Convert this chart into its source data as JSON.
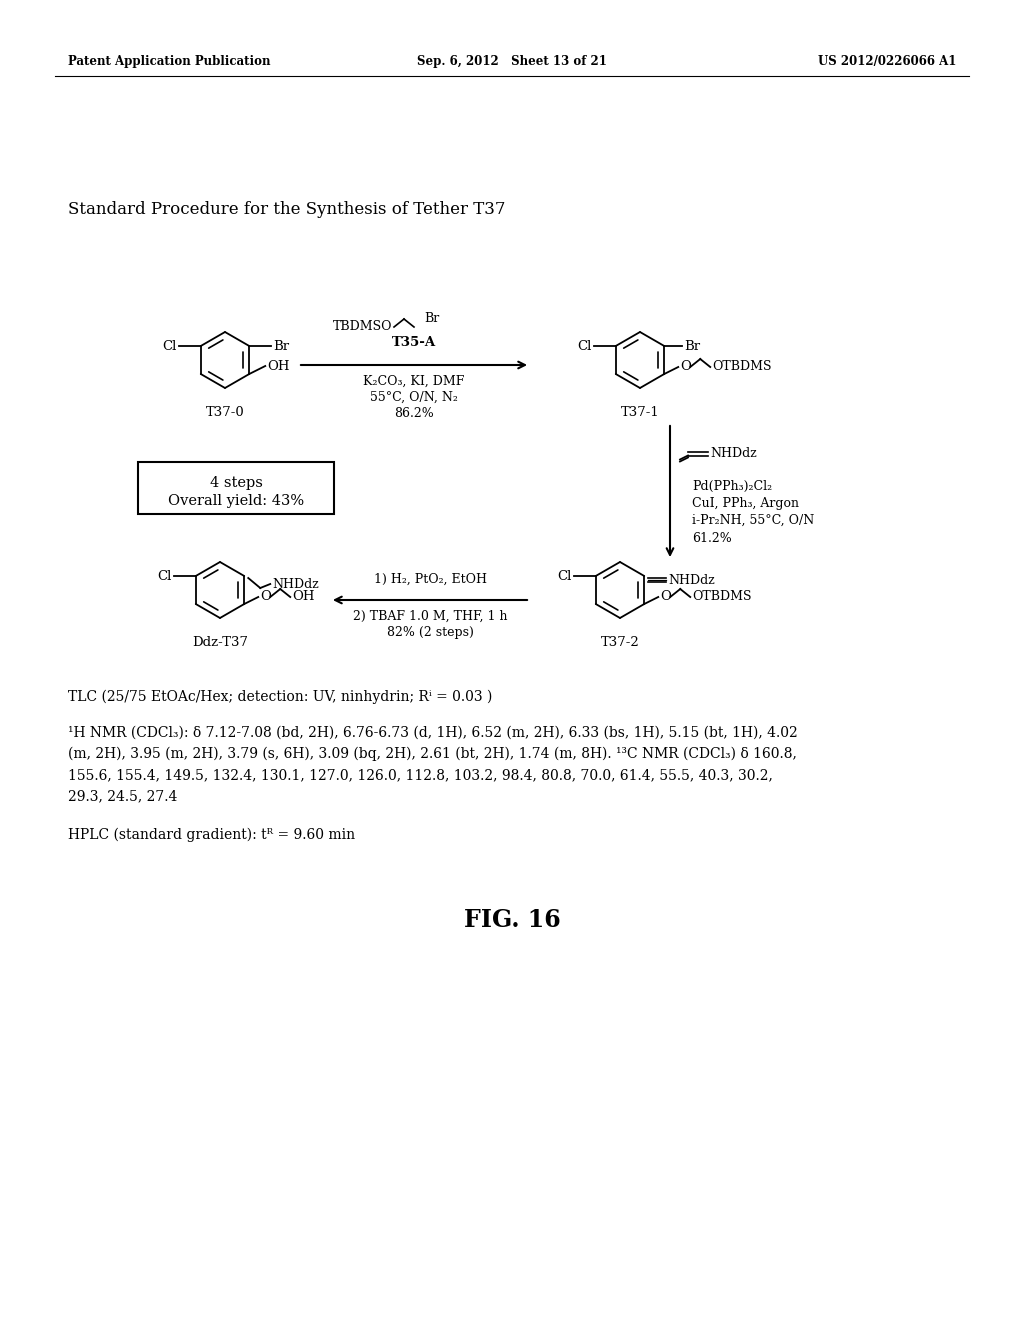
{
  "bg_color": "#ffffff",
  "header_left": "Patent Application Publication",
  "header_center": "Sep. 6, 2012   Sheet 13 of 21",
  "header_right": "US 2012/0226066 A1",
  "section_title": "Standard Procedure for the Synthesis of Tether T37",
  "tlc_text": "TLC (25/75 EtOAc/Hex; detection: UV, ninhydrin; Rⁱ = 0.03 )",
  "nmr_line1": "¹H NMR (CDCl₃): δ 7.12-7.08 (bd, 2H), 6.76-6.73 (d, 1H), 6.52 (m, 2H), 6.33 (bs, 1H), 5.15 (bt, 1H), 4.02",
  "nmr_line2": "(m, 2H), 3.95 (m, 2H), 3.79 (s, 6H), 3.09 (bq, 2H), 2.61 (bt, 2H), 1.74 (m, 8H). ¹³C NMR (CDCl₃) δ 160.8,",
  "nmr_line3": "155.6, 155.4, 149.5, 132.4, 130.1, 127.0, 126.0, 112.8, 103.2, 98.4, 80.8, 70.0, 61.4, 55.5, 40.3, 30.2,",
  "nmr_line4": "29.3, 24.5, 27.4",
  "hplc_text": "HPLC (standard gradient): tᴿ = 9.60 min",
  "fig_label": "FIG. 16"
}
